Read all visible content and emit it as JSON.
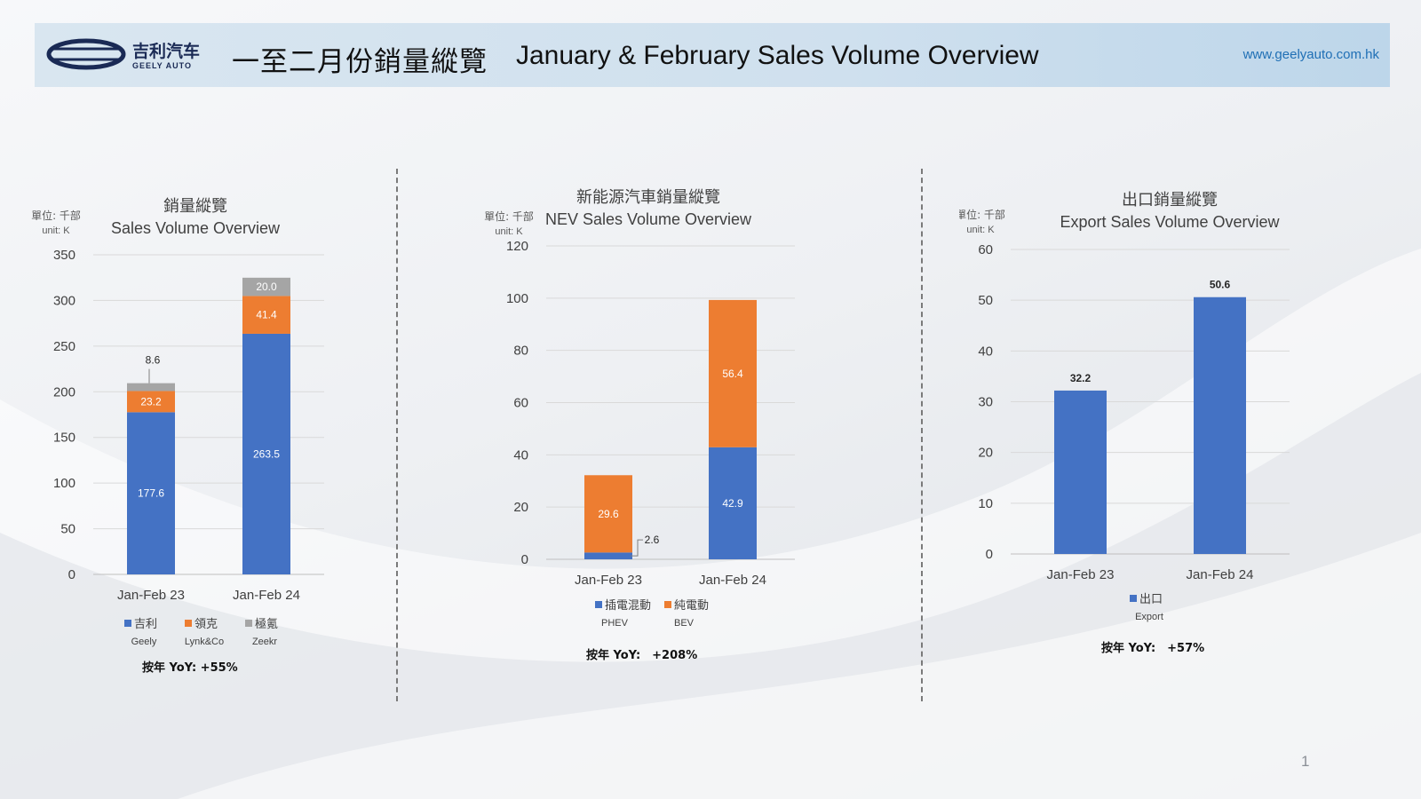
{
  "header": {
    "title_cn": "一至二月份銷量縱覽",
    "title_en": "January & February Sales Volume Overview",
    "website": "www.geelyauto.com.hk",
    "logo_text_cn": "吉利汽车",
    "logo_text_en": "GEELY AUTO"
  },
  "page_number": "1",
  "colors": {
    "blue": "#4472c4",
    "orange": "#ed7d31",
    "gray": "#a5a5a5",
    "header_bg": "#cfe0ee",
    "link": "#1f6fb5"
  },
  "chart_data": [
    {
      "type": "bar",
      "stacked": true,
      "title_cn": "銷量縱覽",
      "title": "Sales Volume Overview",
      "unit_cn": "單位: 千部",
      "unit_en": "unit: K",
      "categories": [
        "Jan-Feb 23",
        "Jan-Feb 24"
      ],
      "ylim": [
        0,
        350
      ],
      "yticks": [
        0,
        50,
        100,
        150,
        200,
        250,
        300,
        350
      ],
      "series": [
        {
          "name": "吉利",
          "name_en": "Geely",
          "color": "#4472c4",
          "values": [
            177.6,
            263.5
          ]
        },
        {
          "name": "領克",
          "name_en": "Lynk&Co",
          "color": "#ed7d31",
          "values": [
            23.2,
            41.4
          ]
        },
        {
          "name": "極氪",
          "name_en": "Zeekr",
          "color": "#a5a5a5",
          "values": [
            8.6,
            20.0
          ]
        }
      ],
      "value_labels": [
        [
          "177.6",
          "263.5"
        ],
        [
          "23.2",
          "41.4"
        ],
        [
          "8.6",
          "20.0"
        ]
      ],
      "yoy": "按年 YoY: +55%",
      "grid": true,
      "legend_position": "bottom"
    },
    {
      "type": "bar",
      "stacked": true,
      "title_cn": "新能源汽車銷量縱覽",
      "title": "NEV Sales Volume Overview",
      "unit_cn": "單位: 千部",
      "unit_en": "unit: K",
      "categories": [
        "Jan-Feb 23",
        "Jan-Feb 24"
      ],
      "ylim": [
        0,
        120
      ],
      "yticks": [
        0,
        20,
        40,
        60,
        80,
        100,
        120
      ],
      "series": [
        {
          "name": "插電混動",
          "name_en": "PHEV",
          "color": "#4472c4",
          "values": [
            2.6,
            42.9
          ]
        },
        {
          "name": "純電動",
          "name_en": "BEV",
          "color": "#ed7d31",
          "values": [
            29.6,
            56.4
          ]
        }
      ],
      "value_labels": [
        [
          "2.6",
          "42.9"
        ],
        [
          "29.6",
          "56.4"
        ]
      ],
      "yoy": "按年 YoY:　+208%",
      "grid": true,
      "legend_position": "bottom"
    },
    {
      "type": "bar",
      "stacked": false,
      "title_cn": "出口銷量縱覽",
      "title": "Export Sales Volume Overview",
      "unit_cn": "單位: 千部",
      "unit_en": "unit: K",
      "categories": [
        "Jan-Feb 23",
        "Jan-Feb 24"
      ],
      "ylim": [
        0,
        60
      ],
      "yticks": [
        0,
        10,
        20,
        30,
        40,
        50,
        60
      ],
      "series": [
        {
          "name": "出口",
          "name_en": "Export",
          "color": "#4472c4",
          "values": [
            32.2,
            50.6
          ]
        }
      ],
      "value_labels": [
        [
          "32.2",
          "50.6"
        ]
      ],
      "yoy": "按年 YoY:　+57%",
      "grid": true,
      "legend_position": "bottom"
    }
  ]
}
